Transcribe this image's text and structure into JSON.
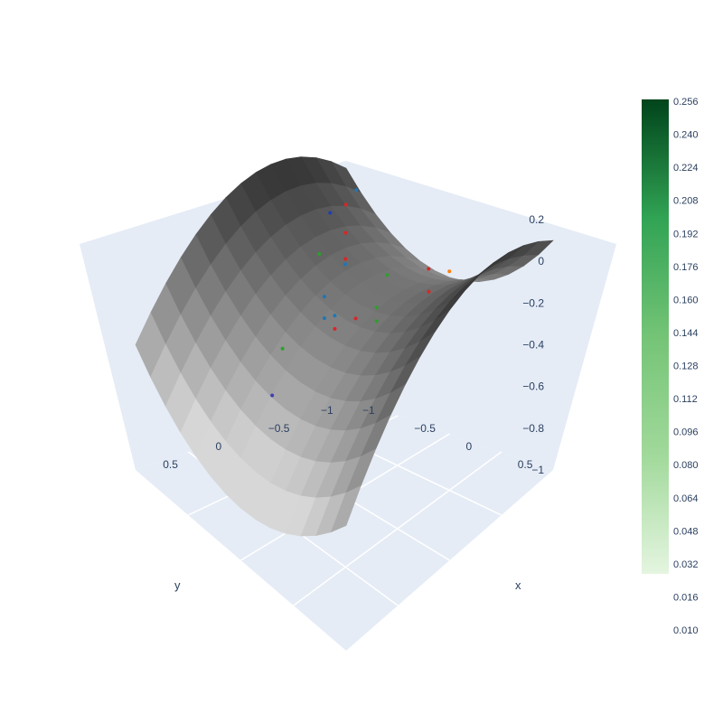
{
  "chart_data": {
    "type": "surface",
    "title": "",
    "x_axis": {
      "label": "x",
      "ticks": [
        "−1",
        "−0.5",
        "0",
        "0.5"
      ],
      "range": [
        -1,
        1
      ]
    },
    "y_axis": {
      "label": "y",
      "ticks": [
        "−1",
        "−0.5",
        "0",
        "0.5"
      ],
      "range": [
        -1,
        1
      ]
    },
    "z_axis": {
      "label": "",
      "ticks": [
        "−1",
        "−0.8",
        "−0.6",
        "−0.4",
        "−0.2",
        "0",
        "0.2"
      ],
      "range": [
        -1,
        0.3
      ]
    },
    "surface": {
      "function": "x^2 - y^2",
      "colorscale": "greys"
    },
    "colorbar": {
      "colorscale": "greens",
      "range": [
        0.01,
        0.256
      ],
      "labels": [
        "0.256",
        "0.240",
        "0.224",
        "0.208",
        "0.192",
        "0.176",
        "0.160",
        "0.144",
        "0.128",
        "0.112",
        "0.096",
        "0.080",
        "0.064",
        "0.048",
        "0.032",
        "0.016",
        "0.010"
      ]
    },
    "markers": [
      {
        "x": -0.8,
        "y": -0.9,
        "z": 0.05,
        "color": "#1f77b4"
      },
      {
        "x": -0.8,
        "y": -0.8,
        "z": 0.0,
        "color": "#d62728"
      },
      {
        "x": -0.9,
        "y": -0.75,
        "z": -0.05,
        "color": "#1f3fb4"
      },
      {
        "x": -0.6,
        "y": -0.6,
        "z": -0.05,
        "color": "#d62728"
      },
      {
        "x": -0.4,
        "y": -0.4,
        "z": -0.08,
        "color": "#d62728"
      },
      {
        "x": -0.45,
        "y": -0.2,
        "z": -0.02,
        "color": "#2ca02c"
      },
      {
        "x": -0.2,
        "y": -0.2,
        "z": 0.0,
        "color": "#1f77b4"
      },
      {
        "x": -0.2,
        "y": 0.0,
        "z": -0.1,
        "color": "#1f77b4"
      },
      {
        "x": -0.3,
        "y": 0.3,
        "z": -0.3,
        "color": "#2ca02c"
      },
      {
        "x": 0.0,
        "y": 0.1,
        "z": -0.1,
        "color": "#1f77b4"
      },
      {
        "x": 0.1,
        "y": 0.2,
        "z": -0.1,
        "color": "#d62728"
      },
      {
        "x": 0.2,
        "y": 0.1,
        "z": -0.05,
        "color": "#d62728"
      },
      {
        "x": 0.3,
        "y": 0.0,
        "z": 0.0,
        "color": "#2ca02c"
      },
      {
        "x": 0.6,
        "y": -0.2,
        "z": 0.2,
        "color": "#d62728"
      },
      {
        "x": 0.5,
        "y": -0.5,
        "z": 0.05,
        "color": "#ff7f0e"
      },
      {
        "x": 0.9,
        "y": 0.1,
        "z": 0.3,
        "color": "#d62728"
      },
      {
        "x": 0.1,
        "y": -0.3,
        "z": 0.0,
        "color": "#2ca02c"
      },
      {
        "x": 0.2,
        "y": 0.4,
        "z": 0.05,
        "color": "#1f77b4"
      },
      {
        "x": 0.0,
        "y": 0.7,
        "z": -0.3,
        "color": "#3f3fb4"
      },
      {
        "x": 0.4,
        "y": 0.1,
        "z": 0.0,
        "color": "#2ca02c"
      }
    ]
  }
}
